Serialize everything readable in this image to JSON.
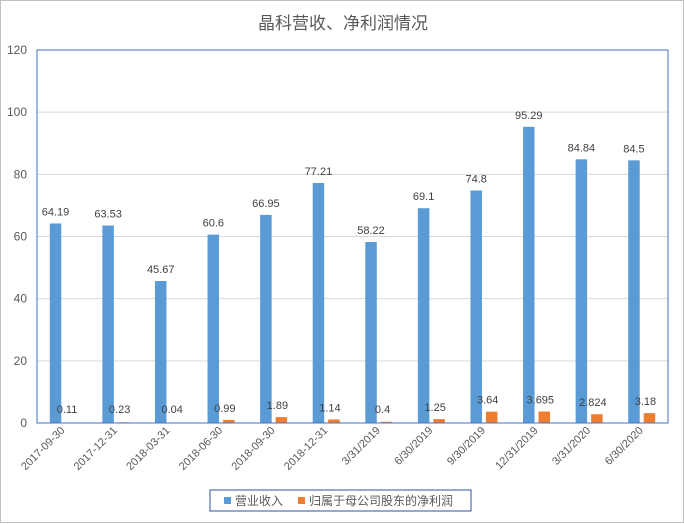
{
  "chart_data": {
    "type": "bar",
    "title": "晶科营收、净利润情况",
    "categories": [
      "2017-09-30",
      "2017-12-31",
      "2018-03-31",
      "2018-06-30",
      "2018-09-30",
      "2018-12-31",
      "3/31/2019",
      "6/30/2019",
      "9/30/2019",
      "12/31/2019",
      "3/31/2020",
      "6/30/2020"
    ],
    "series": [
      {
        "name": "营业收入",
        "color": "#5b9bd5",
        "values": [
          64.19,
          63.53,
          45.67,
          60.6,
          66.95,
          77.21,
          58.22,
          69.1,
          74.8,
          95.29,
          84.84,
          84.5
        ],
        "labels": [
          "64.19",
          "63.53",
          "45.67",
          "60.6",
          "66.95",
          "77.21",
          "58.22",
          "69.1",
          "74.8",
          "95.29",
          "84.84",
          "84.5"
        ]
      },
      {
        "name": "归属于母公司股东的净利润",
        "color": "#ed7d31",
        "values": [
          0.11,
          0.23,
          0.04,
          0.99,
          1.89,
          1.14,
          0.4,
          1.25,
          3.64,
          3.695,
          2.824,
          3.18
        ],
        "labels": [
          "0.11",
          "0.23",
          "0.04",
          "0.99",
          "1.89",
          "1.14",
          "0.4",
          "1.25",
          "3.64",
          "3.695",
          "2.824",
          "3.18"
        ]
      }
    ],
    "ylim": [
      0,
      120
    ],
    "yticks": [
      "0",
      "20",
      "40",
      "60",
      "80",
      "100",
      "120"
    ],
    "grid": true,
    "legend": "bottom",
    "plot_border": "#4472c4"
  }
}
